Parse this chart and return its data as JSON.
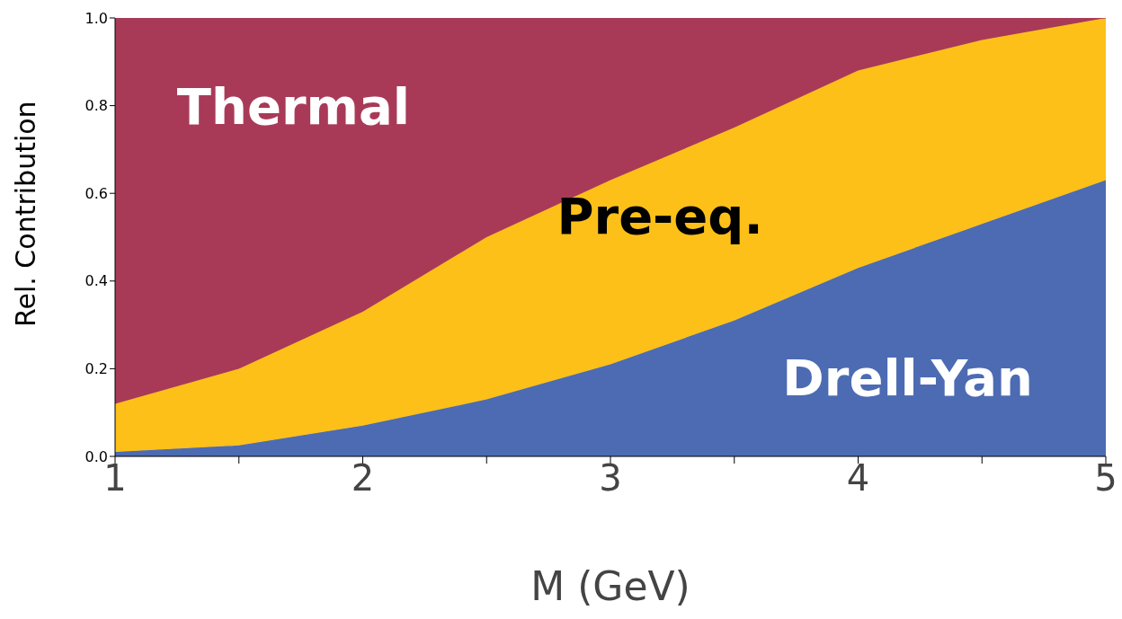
{
  "chart_data": {
    "type": "area",
    "stacked": true,
    "xlabel": "M (GeV)",
    "ylabel": "Rel. Contribution",
    "x": [
      1,
      1.5,
      2,
      2.5,
      3,
      3.5,
      4,
      4.5,
      5
    ],
    "series": [
      {
        "name": "Drell-Yan",
        "color": "#4c6bb3",
        "values": [
          0.01,
          0.025,
          0.07,
          0.13,
          0.21,
          0.31,
          0.43,
          0.53,
          0.63
        ]
      },
      {
        "name": "Pre-eq.",
        "color": "#fdc018",
        "values": [
          0.11,
          0.175,
          0.26,
          0.37,
          0.42,
          0.44,
          0.45,
          0.42,
          0.37
        ]
      },
      {
        "name": "Thermal",
        "color": "#a83a58",
        "values": [
          0.88,
          0.8,
          0.67,
          0.5,
          0.37,
          0.25,
          0.12,
          0.05,
          0
        ]
      }
    ],
    "xlim": [
      1,
      5
    ],
    "xticks": [
      1,
      {
        "value": 1.5,
        "label": null
      },
      2,
      {
        "value": 2.5,
        "label": null
      },
      3,
      {
        "value": 3.5,
        "label": null
      },
      4,
      {
        "value": 4.5,
        "label": null
      },
      5
    ],
    "ylim": [
      0,
      1
    ],
    "yticks": [
      {
        "value": 0,
        "label": "0.0"
      },
      {
        "value": 0.2,
        "label": "0.2"
      },
      {
        "value": 0.4,
        "label": "0.4"
      },
      {
        "value": 0.6,
        "label": "0.6"
      },
      {
        "value": 0.8,
        "label": "0.8"
      },
      {
        "value": 1,
        "label": "1.0"
      }
    ],
    "grid": false,
    "legend": false
  }
}
